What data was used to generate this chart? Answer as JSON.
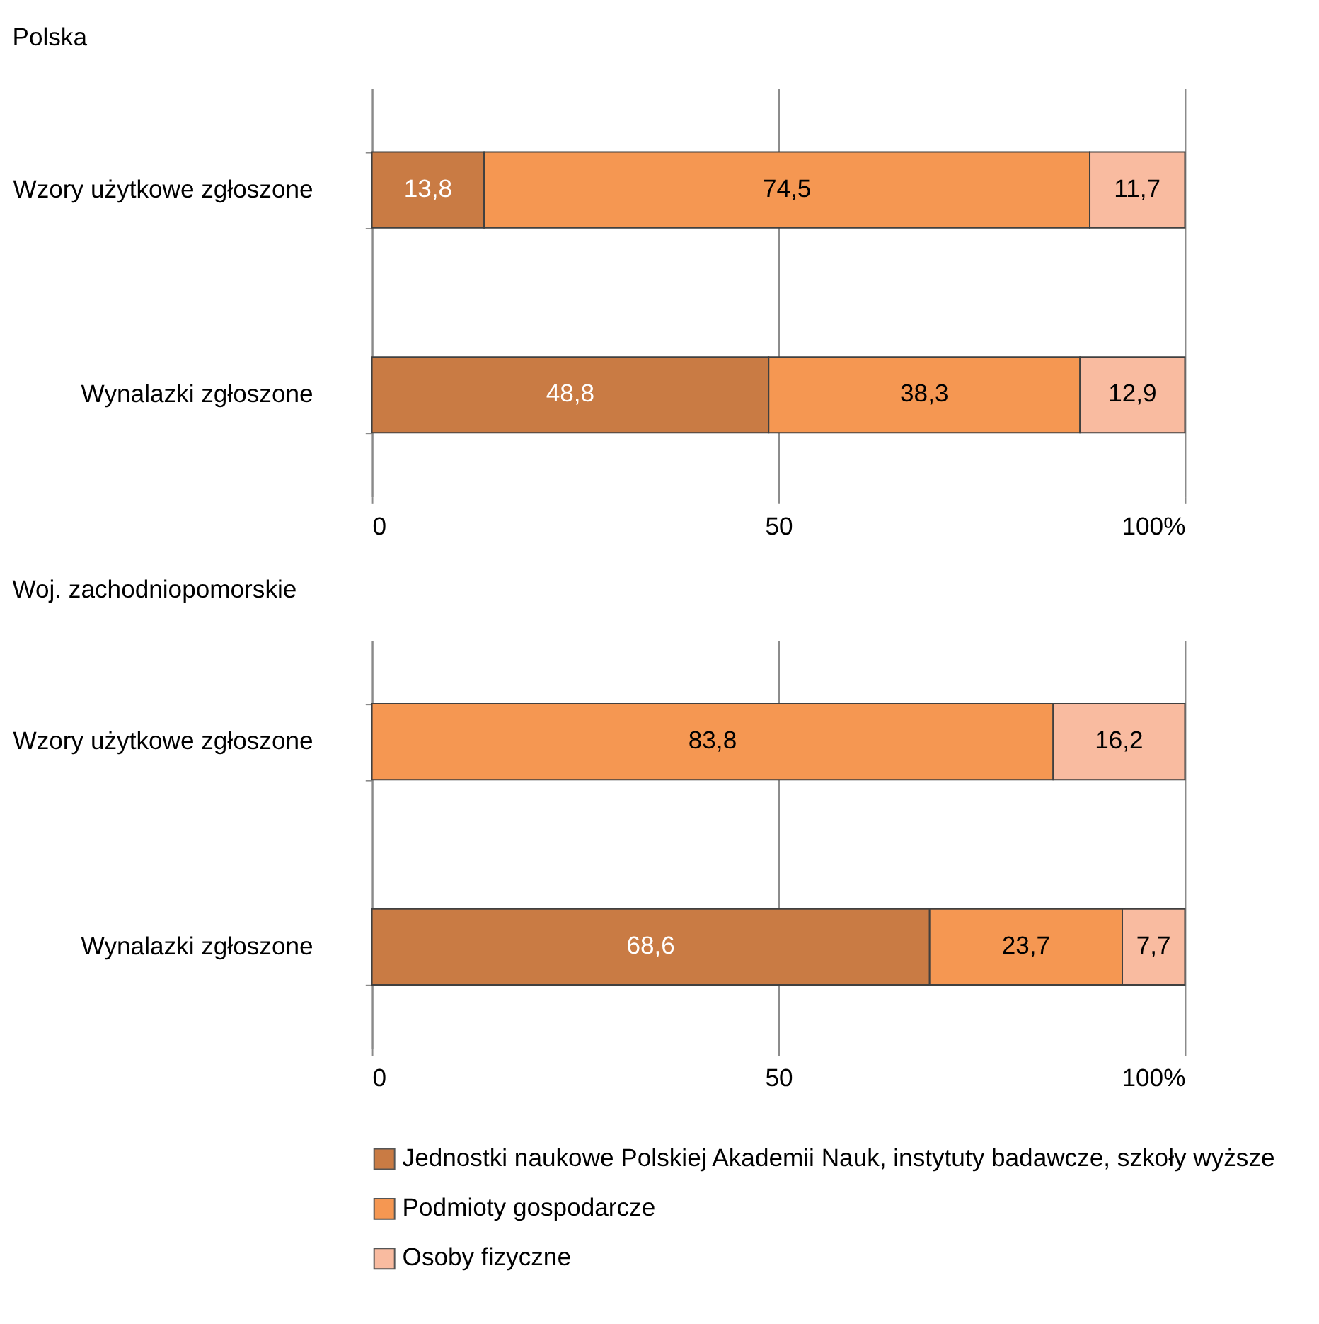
{
  "chart_data": [
    {
      "type": "bar",
      "title": "Polska",
      "orientation": "horizontal",
      "stacked": true,
      "categories": [
        "Wzory użytkowe zgłoszone",
        "Wynalazki zgłoszone"
      ],
      "series": [
        {
          "name": "Jednostki naukowe Polskiej Akademii Nauk, instytuty badawcze, szkoły wyższe",
          "color": "#c97b44",
          "values": [
            13.8,
            48.8
          ],
          "value_labels": [
            "13,8",
            "48,8"
          ]
        },
        {
          "name": "Podmioty gospodarcze",
          "color": "#f59752",
          "values": [
            74.5,
            38.3
          ],
          "value_labels": [
            "74,5",
            "38,3"
          ]
        },
        {
          "name": "Osoby fizyczne",
          "color": "#f9bba0",
          "values": [
            11.7,
            12.9
          ],
          "value_labels": [
            "11,7",
            "12,9"
          ]
        }
      ],
      "xlim": [
        0,
        100
      ],
      "xticks": [
        0,
        50,
        {
          "value": 100,
          "label": "100%"
        }
      ],
      "grid": "x",
      "legend": "bottom"
    },
    {
      "type": "bar",
      "title": "Woj. zachodniopomorskie",
      "orientation": "horizontal",
      "stacked": true,
      "categories": [
        "Wzory użytkowe zgłoszone",
        "Wynalazki zgłoszone"
      ],
      "series": [
        {
          "name": "Jednostki naukowe Polskiej Akademii Nauk, instytuty badawcze, szkoły wyższe",
          "color": "#c97b44",
          "values": [
            null,
            68.6
          ],
          "value_labels": [
            null,
            "68,6"
          ]
        },
        {
          "name": "Podmioty gospodarcze",
          "color": "#f59752",
          "values": [
            83.8,
            23.7
          ],
          "value_labels": [
            "83,8",
            "23,7"
          ]
        },
        {
          "name": "Osoby fizyczne",
          "color": "#f9bba0",
          "values": [
            16.2,
            7.7
          ],
          "value_labels": [
            "16,2",
            "7,7"
          ]
        }
      ],
      "xlim": [
        0,
        100
      ],
      "xticks": [
        0,
        50,
        {
          "value": 100,
          "label": "100%"
        }
      ],
      "grid": "x",
      "legend": "bottom"
    }
  ]
}
